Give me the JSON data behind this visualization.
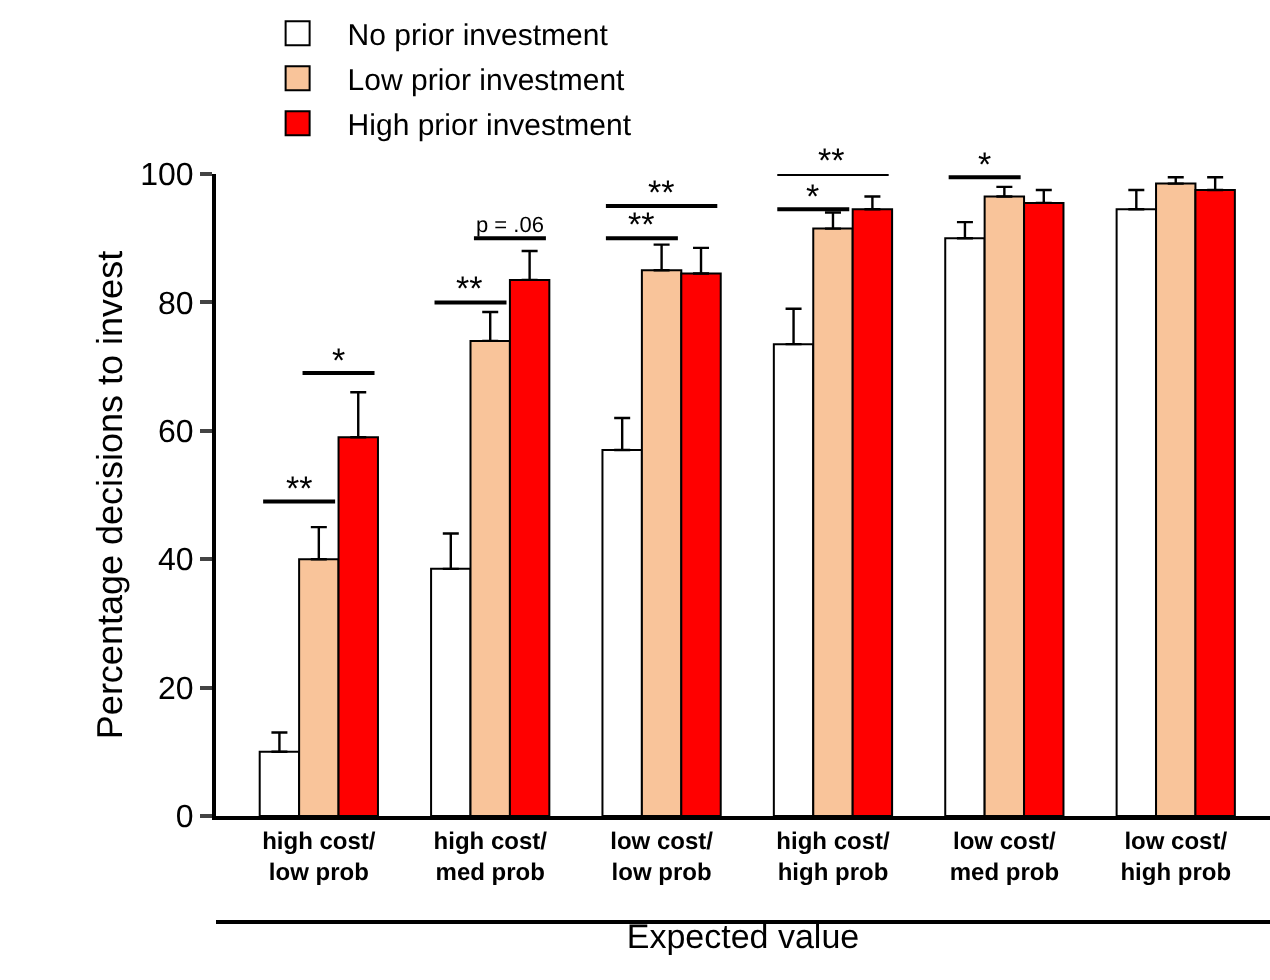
{
  "chart_data": {
    "type": "bar",
    "xlabel": "Expected value",
    "ylabel": "Percentage decisions to invest",
    "categories": [
      "high cost/\nlow prob",
      "high cost/\nmed prob",
      "low cost/\nlow prob",
      "high cost/\nhigh prob",
      "low cost/\nmed prob",
      "low cost/\nhigh prob"
    ],
    "series": [
      {
        "name": "No prior investment",
        "color": "#ffffff",
        "values": [
          10,
          38.5,
          57,
          73.5,
          90,
          94.5
        ],
        "errors": [
          3,
          5.5,
          5,
          5.5,
          2.5,
          3
        ]
      },
      {
        "name": "Low prior investment",
        "color": "#f9c49a",
        "values": [
          40,
          74,
          85,
          91.5,
          96.5,
          98.5
        ],
        "errors": [
          5,
          4.5,
          4,
          2.5,
          1.5,
          1
        ]
      },
      {
        "name": "High prior investment",
        "color": "#ff0000",
        "values": [
          59,
          83.5,
          84.5,
          94.5,
          95.5,
          97.5
        ],
        "errors": [
          7,
          4.5,
          4,
          2,
          2,
          2
        ]
      }
    ],
    "ylim": [
      0,
      100
    ],
    "yticks": [
      0,
      20,
      40,
      60,
      80,
      100
    ],
    "grid": false,
    "legend": "top left",
    "annotations": [
      "**",
      "*",
      "**",
      "p = .06",
      "**",
      "**",
      "*",
      "**",
      "*"
    ]
  }
}
